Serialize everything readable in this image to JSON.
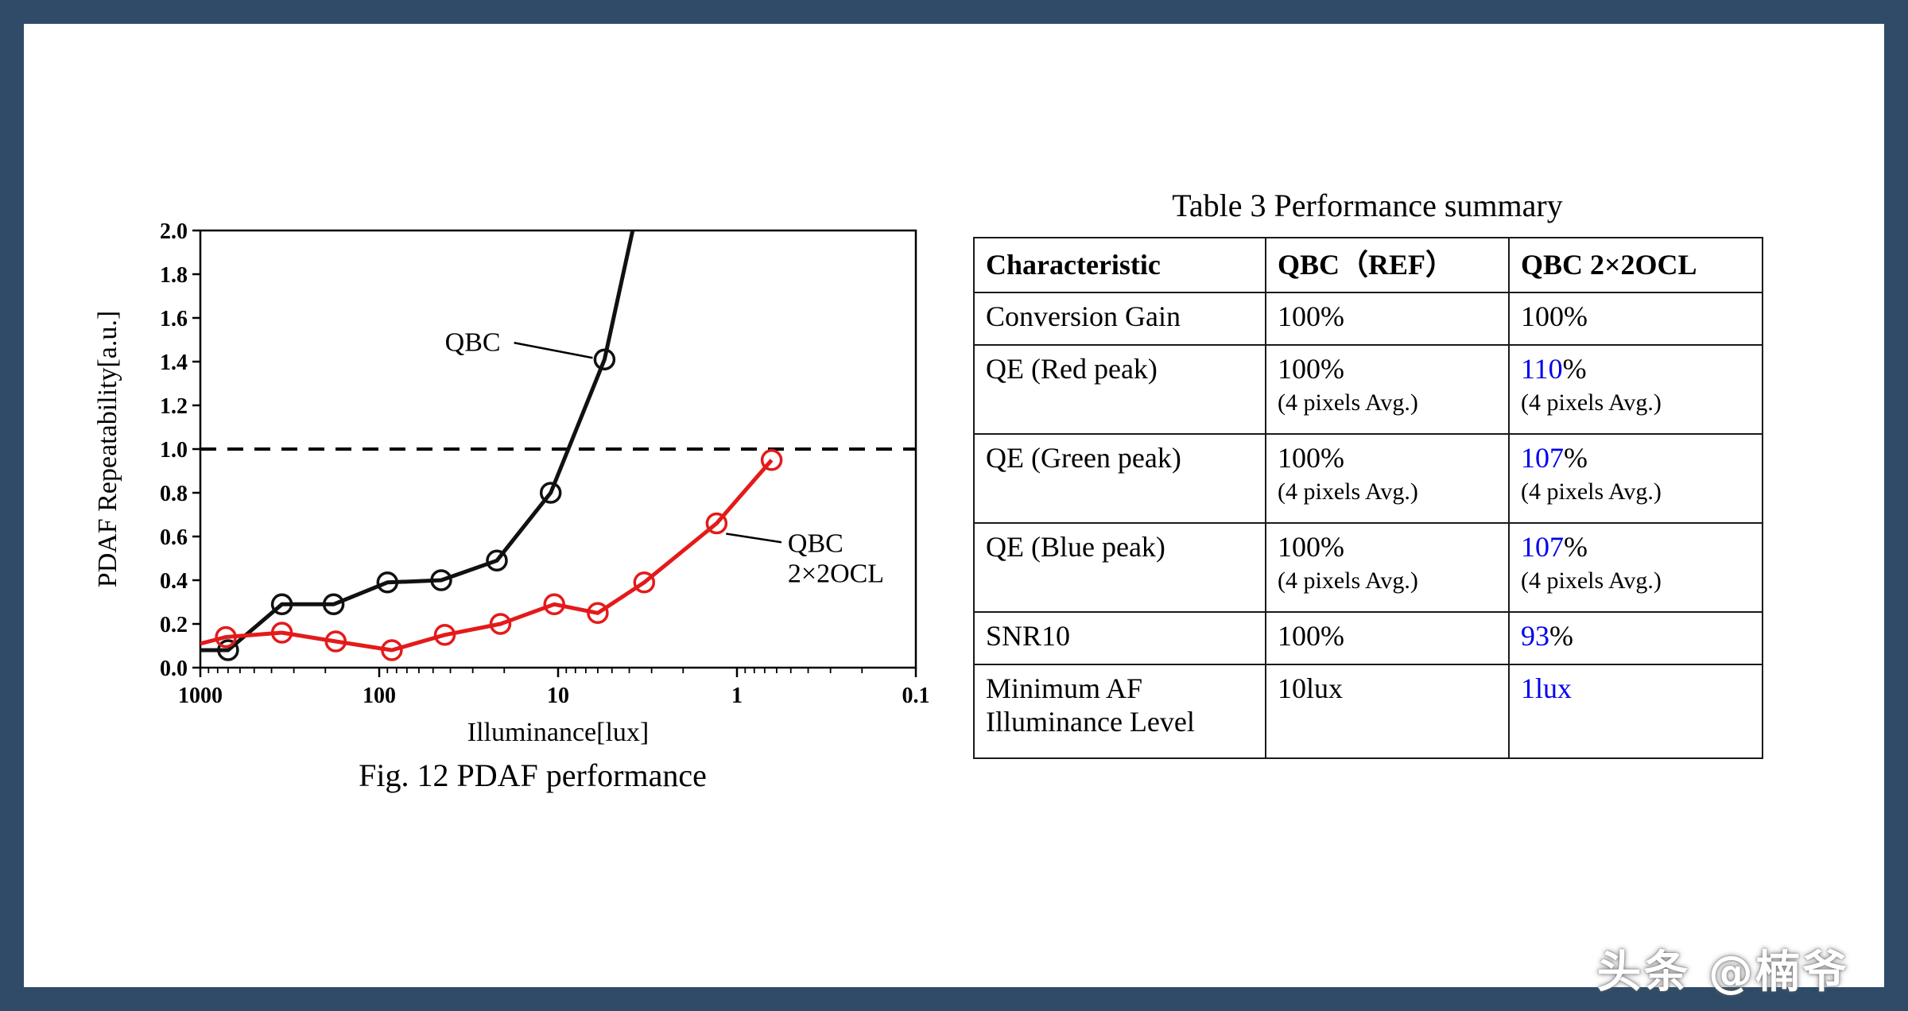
{
  "page": {
    "background": "#ffffff",
    "frame_color": "#2f4b68"
  },
  "figure": {
    "caption": "Fig. 12 PDAF performance"
  },
  "chart_data": {
    "type": "line",
    "title": "",
    "xlabel": "Illuminance[lux]",
    "ylabel": "PDAF Repeatability[a.u.]",
    "x_scale": "log",
    "x_reversed": true,
    "xlim": [
      1000,
      0.1
    ],
    "x_ticks": [
      1000,
      100,
      10,
      1,
      0.1
    ],
    "ylim": [
      0,
      2.0
    ],
    "y_ticks": [
      0,
      0.2,
      0.4,
      0.6,
      0.8,
      1.0,
      1.2,
      1.4,
      1.6,
      1.8,
      2.0
    ],
    "grid": false,
    "legend_position": "inline-annotations",
    "reference_line": {
      "y": 1.0,
      "style": "dashed",
      "color": "#000000"
    },
    "series": [
      {
        "name": "QBC",
        "color": "#111111",
        "points": [
          [
            1000,
            0.08,
            0
          ],
          [
            700,
            0.08,
            1
          ],
          [
            350,
            0.29,
            1
          ],
          [
            180,
            0.29,
            1
          ],
          [
            90,
            0.39,
            1
          ],
          [
            45,
            0.4,
            1
          ],
          [
            22,
            0.49,
            1
          ],
          [
            11,
            0.8,
            1
          ],
          [
            5.5,
            1.41,
            1
          ],
          [
            3.6,
            2.1,
            0
          ]
        ]
      },
      {
        "name": "QBC 2×2OCL",
        "color": "#e41a1a",
        "points": [
          [
            1000,
            0.11,
            0
          ],
          [
            720,
            0.14,
            1
          ],
          [
            350,
            0.16,
            1
          ],
          [
            175,
            0.12,
            1
          ],
          [
            85,
            0.08,
            1
          ],
          [
            43,
            0.15,
            1
          ],
          [
            21,
            0.2,
            1
          ],
          [
            10.5,
            0.29,
            1
          ],
          [
            6,
            0.25,
            1
          ],
          [
            3.3,
            0.39,
            1
          ],
          [
            1.3,
            0.66,
            1
          ],
          [
            0.64,
            0.95,
            1
          ]
        ]
      }
    ],
    "annotations": [
      {
        "lines": [
          "QBC"
        ],
        "label_lux": 30,
        "label_value": 1.45,
        "align": "center",
        "target_lux": 5.5,
        "target_value": 1.41,
        "connector_from": "right"
      },
      {
        "lines": [
          "QBC",
          "2×2OCL"
        ],
        "label_lux": 0.52,
        "label_value": 0.53,
        "align": "left",
        "target_lux": 1.3,
        "target_value": 0.66,
        "connector_from": "left"
      }
    ]
  },
  "table": {
    "title": "Table 3 Performance summary",
    "accent_blue": "#0000ee",
    "headers": [
      "Characteristic",
      "QBC（REF）",
      "QBC 2×2OCL"
    ],
    "rows": [
      {
        "name": "Conversion Gain",
        "ref": {
          "value": "100",
          "suffix": "%"
        },
        "ocl": {
          "value": "100",
          "suffix": "%"
        }
      },
      {
        "name": "QE (Red peak)",
        "ref": {
          "value": "100",
          "suffix": "%",
          "note": "(4 pixels Avg.)"
        },
        "ocl": {
          "value": "110",
          "suffix": "%",
          "blue": true,
          "note": "(4 pixels Avg.)"
        }
      },
      {
        "name": "QE (Green peak)",
        "ref": {
          "value": "100",
          "suffix": "%",
          "note": "(4 pixels Avg.)"
        },
        "ocl": {
          "value": "107",
          "suffix": "%",
          "blue": true,
          "note": "(4 pixels Avg.)"
        }
      },
      {
        "name": "QE (Blue peak)",
        "ref": {
          "value": "100",
          "suffix": "%",
          "note": "(4 pixels Avg.)"
        },
        "ocl": {
          "value": "107",
          "suffix": "%",
          "blue": true,
          "note": "(4 pixels Avg.)"
        }
      },
      {
        "name": "SNR10",
        "ref": {
          "value": "100",
          "suffix": "%"
        },
        "ocl": {
          "value": "93",
          "suffix": "%",
          "blue": true
        }
      },
      {
        "name": "Minimum AF Illuminance Level",
        "ref": {
          "value": "10lux"
        },
        "ocl": {
          "value": "1lux",
          "blue": true
        }
      }
    ]
  },
  "watermark": "头条 @楠爷"
}
